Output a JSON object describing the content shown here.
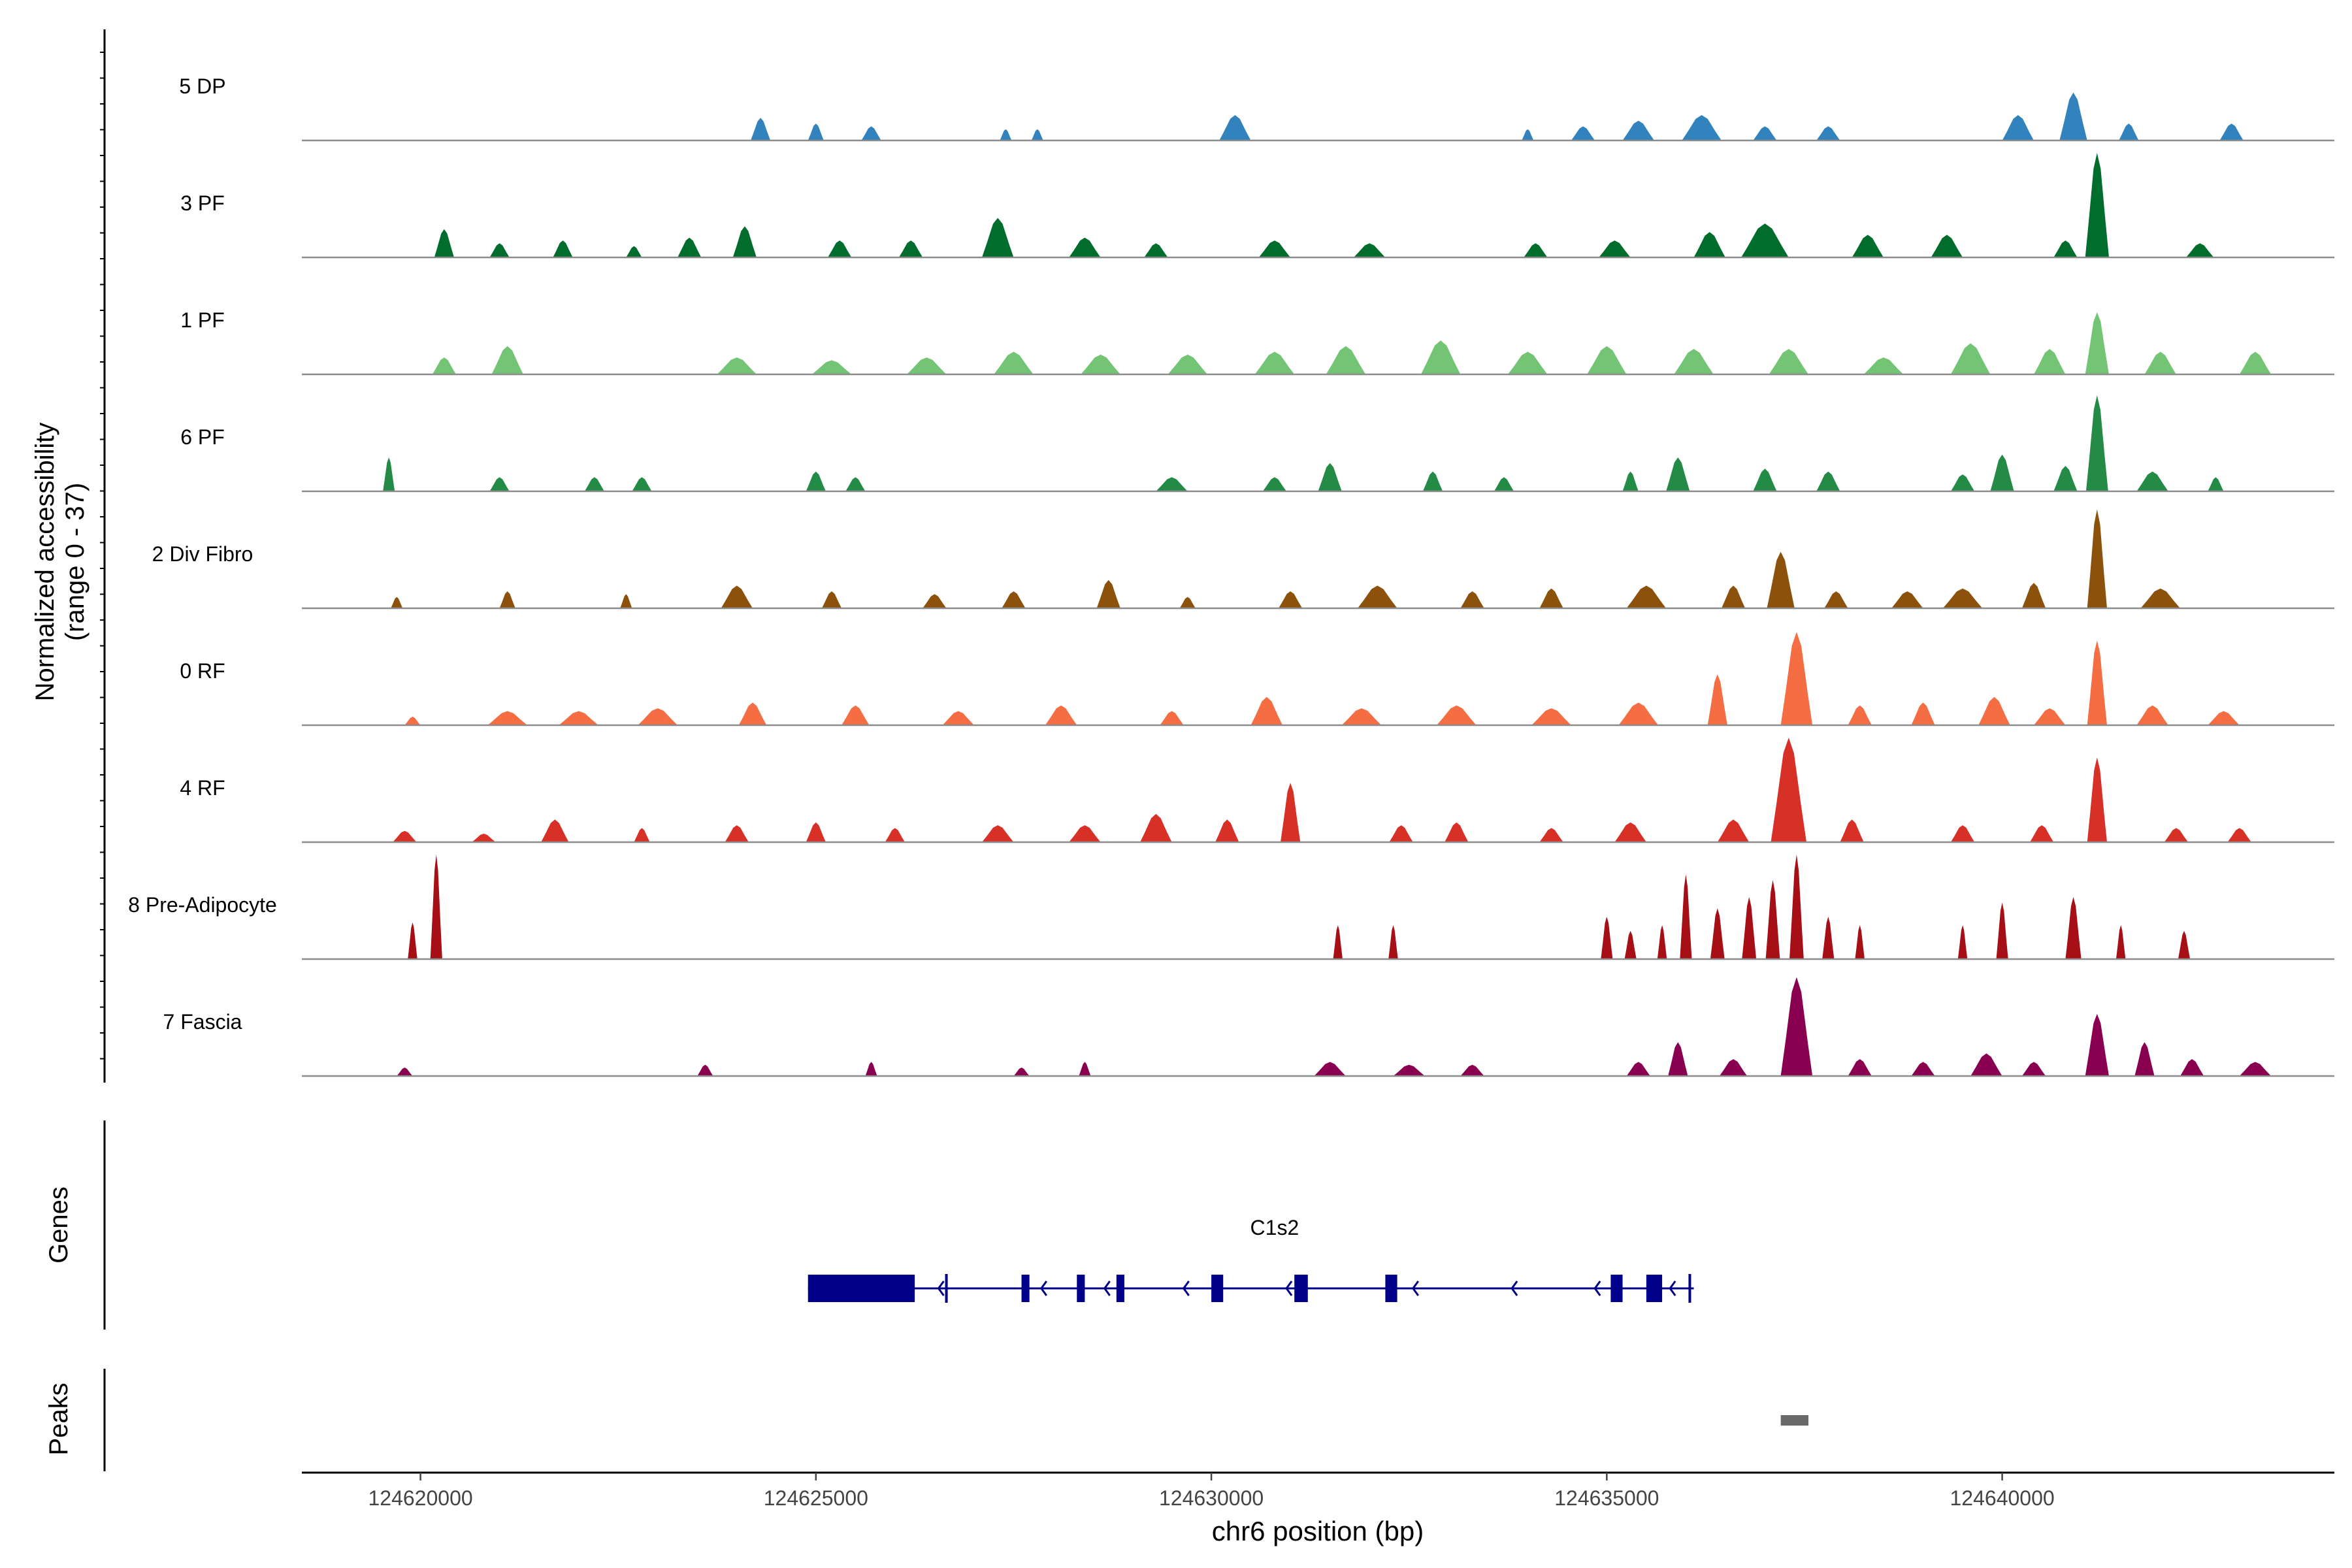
{
  "chart_data": {
    "type": "area",
    "title": "",
    "ylabel_line1": "Normalized accessibility",
    "ylabel_line2": "(range 0 - 37)",
    "xlabel": "chr6 position (bp)",
    "xlim": [
      124618500,
      124644200
    ],
    "ylim": [
      0,
      37
    ],
    "xticks": [
      124620000,
      124625000,
      124630000,
      124635000,
      124640000
    ],
    "xtick_labels": [
      "124620000",
      "124625000",
      "124630000",
      "124635000",
      "124640000"
    ],
    "tracks": [
      {
        "name": "5 DP",
        "color": "#3182bd",
        "peaks": [
          [
            124624300,
            8,
            250
          ],
          [
            124625000,
            6,
            200
          ],
          [
            124625700,
            5,
            250
          ],
          [
            124627400,
            4,
            150
          ],
          [
            124627800,
            4,
            150
          ],
          [
            124630300,
            9,
            400
          ],
          [
            124634000,
            4,
            150
          ],
          [
            124634700,
            5,
            300
          ],
          [
            124635400,
            7,
            400
          ],
          [
            124636200,
            9,
            500
          ],
          [
            124637000,
            5,
            300
          ],
          [
            124637800,
            5,
            300
          ],
          [
            124640200,
            9,
            400
          ],
          [
            124640900,
            17,
            350
          ],
          [
            124641600,
            6,
            250
          ],
          [
            124642900,
            6,
            300
          ]
        ]
      },
      {
        "name": "3 PF",
        "color": "#006d2c",
        "peaks": [
          [
            124620300,
            10,
            250
          ],
          [
            124621000,
            5,
            250
          ],
          [
            124621800,
            6,
            250
          ],
          [
            124622700,
            4,
            200
          ],
          [
            124623400,
            7,
            300
          ],
          [
            124624100,
            11,
            300
          ],
          [
            124625300,
            6,
            300
          ],
          [
            124626200,
            6,
            300
          ],
          [
            124627300,
            14,
            400
          ],
          [
            124628400,
            7,
            400
          ],
          [
            124629300,
            5,
            300
          ],
          [
            124630800,
            6,
            400
          ],
          [
            124632000,
            5,
            400
          ],
          [
            124634100,
            5,
            300
          ],
          [
            124635100,
            6,
            400
          ],
          [
            124636300,
            9,
            400
          ],
          [
            124637000,
            12,
            600
          ],
          [
            124638300,
            8,
            400
          ],
          [
            124639300,
            8,
            400
          ],
          [
            124640800,
            6,
            300
          ],
          [
            124641200,
            37,
            300
          ],
          [
            124642500,
            5,
            350
          ]
        ]
      },
      {
        "name": "1 PF",
        "color": "#74c476",
        "peaks": [
          [
            124620300,
            6,
            300
          ],
          [
            124621100,
            10,
            400
          ],
          [
            124624000,
            6,
            500
          ],
          [
            124625200,
            5,
            500
          ],
          [
            124626400,
            6,
            500
          ],
          [
            124627500,
            8,
            500
          ],
          [
            124628600,
            7,
            500
          ],
          [
            124629700,
            7,
            500
          ],
          [
            124630800,
            8,
            500
          ],
          [
            124631700,
            10,
            500
          ],
          [
            124632900,
            12,
            500
          ],
          [
            124634000,
            8,
            500
          ],
          [
            124635000,
            10,
            500
          ],
          [
            124636100,
            9,
            500
          ],
          [
            124637300,
            9,
            500
          ],
          [
            124638500,
            6,
            500
          ],
          [
            124639600,
            11,
            500
          ],
          [
            124640600,
            9,
            400
          ],
          [
            124641200,
            22,
            300
          ],
          [
            124642000,
            8,
            400
          ],
          [
            124643200,
            8,
            400
          ]
        ]
      },
      {
        "name": "6 PF",
        "color": "#238b45",
        "peaks": [
          [
            124619600,
            12,
            150
          ],
          [
            124621000,
            5,
            250
          ],
          [
            124622200,
            5,
            250
          ],
          [
            124622800,
            5,
            250
          ],
          [
            124625000,
            7,
            250
          ],
          [
            124625500,
            5,
            250
          ],
          [
            124629500,
            5,
            400
          ],
          [
            124630800,
            5,
            300
          ],
          [
            124631500,
            10,
            300
          ],
          [
            124632800,
            7,
            250
          ],
          [
            124633700,
            5,
            250
          ],
          [
            124635300,
            7,
            200
          ],
          [
            124635900,
            12,
            300
          ],
          [
            124637000,
            8,
            300
          ],
          [
            124637800,
            7,
            300
          ],
          [
            124639500,
            6,
            300
          ],
          [
            124640000,
            13,
            300
          ],
          [
            124640800,
            9,
            300
          ],
          [
            124641200,
            34,
            280
          ],
          [
            124641900,
            7,
            400
          ],
          [
            124642700,
            5,
            200
          ]
        ]
      },
      {
        "name": "2 Div Fibro",
        "color": "#8c510a",
        "peaks": [
          [
            124619700,
            4,
            150
          ],
          [
            124621100,
            6,
            200
          ],
          [
            124622600,
            5,
            150
          ],
          [
            124624000,
            8,
            400
          ],
          [
            124625200,
            6,
            250
          ],
          [
            124626500,
            5,
            300
          ],
          [
            124627500,
            6,
            300
          ],
          [
            124628700,
            10,
            300
          ],
          [
            124629700,
            4,
            200
          ],
          [
            124631000,
            6,
            300
          ],
          [
            124632100,
            8,
            500
          ],
          [
            124633300,
            6,
            300
          ],
          [
            124634300,
            7,
            300
          ],
          [
            124635500,
            8,
            500
          ],
          [
            124636600,
            8,
            300
          ],
          [
            124637200,
            20,
            350
          ],
          [
            124637900,
            6,
            300
          ],
          [
            124638800,
            6,
            400
          ],
          [
            124639500,
            7,
            500
          ],
          [
            124640400,
            9,
            300
          ],
          [
            124641200,
            35,
            250
          ],
          [
            124642000,
            7,
            500
          ]
        ]
      },
      {
        "name": "0 RF",
        "color": "#f46d43",
        "peaks": [
          [
            124619900,
            3,
            200
          ],
          [
            124621100,
            5,
            500
          ],
          [
            124622000,
            5,
            500
          ],
          [
            124623000,
            6,
            500
          ],
          [
            124624200,
            8,
            350
          ],
          [
            124625500,
            7,
            350
          ],
          [
            124626800,
            5,
            400
          ],
          [
            124628100,
            7,
            400
          ],
          [
            124629500,
            5,
            300
          ],
          [
            124630700,
            10,
            400
          ],
          [
            124631900,
            6,
            500
          ],
          [
            124633100,
            7,
            500
          ],
          [
            124634300,
            6,
            500
          ],
          [
            124635400,
            8,
            500
          ],
          [
            124636400,
            18,
            250
          ],
          [
            124637400,
            33,
            400
          ],
          [
            124638200,
            7,
            300
          ],
          [
            124639000,
            8,
            300
          ],
          [
            124639900,
            10,
            400
          ],
          [
            124640600,
            6,
            400
          ],
          [
            124641200,
            30,
            250
          ],
          [
            124641900,
            7,
            400
          ],
          [
            124642800,
            5,
            400
          ]
        ]
      },
      {
        "name": "4 RF",
        "color": "#d73027",
        "peaks": [
          [
            124619800,
            4,
            300
          ],
          [
            124620800,
            3,
            300
          ],
          [
            124621700,
            8,
            350
          ],
          [
            124622800,
            5,
            200
          ],
          [
            124624000,
            6,
            300
          ],
          [
            124625000,
            7,
            250
          ],
          [
            124626000,
            5,
            250
          ],
          [
            124627300,
            6,
            400
          ],
          [
            124628400,
            6,
            400
          ],
          [
            124629300,
            10,
            400
          ],
          [
            124630200,
            8,
            300
          ],
          [
            124631000,
            21,
            250
          ],
          [
            124632400,
            6,
            300
          ],
          [
            124633100,
            7,
            300
          ],
          [
            124634300,
            5,
            300
          ],
          [
            124635300,
            7,
            400
          ],
          [
            124636600,
            8,
            400
          ],
          [
            124637300,
            37,
            450
          ],
          [
            124638100,
            8,
            300
          ],
          [
            124639500,
            6,
            300
          ],
          [
            124640500,
            6,
            300
          ],
          [
            124641200,
            30,
            250
          ],
          [
            124642200,
            5,
            300
          ],
          [
            124643000,
            5,
            300
          ]
        ]
      },
      {
        "name": "8 Pre-Adipocyte",
        "color": "#a50f15",
        "peaks": [
          [
            124619900,
            13,
            120
          ],
          [
            124620200,
            37,
            150
          ],
          [
            124631600,
            12,
            120
          ],
          [
            124632300,
            12,
            120
          ],
          [
            124635000,
            15,
            150
          ],
          [
            124635300,
            10,
            150
          ],
          [
            124635700,
            12,
            120
          ],
          [
            124636000,
            30,
            150
          ],
          [
            124636400,
            18,
            180
          ],
          [
            124636800,
            22,
            180
          ],
          [
            124637100,
            28,
            180
          ],
          [
            124637400,
            37,
            180
          ],
          [
            124637800,
            15,
            150
          ],
          [
            124638200,
            12,
            120
          ],
          [
            124639500,
            12,
            120
          ],
          [
            124640000,
            20,
            150
          ],
          [
            124640900,
            22,
            200
          ],
          [
            124641500,
            12,
            120
          ],
          [
            124642300,
            10,
            150
          ]
        ]
      },
      {
        "name": "7 Fascia",
        "color": "#8a0051",
        "peaks": [
          [
            124619800,
            3,
            200
          ],
          [
            124623600,
            4,
            200
          ],
          [
            124625700,
            5,
            150
          ],
          [
            124627600,
            3,
            200
          ],
          [
            124628400,
            5,
            150
          ],
          [
            124631500,
            5,
            400
          ],
          [
            124632500,
            4,
            400
          ],
          [
            124633300,
            4,
            300
          ],
          [
            124635400,
            5,
            300
          ],
          [
            124635900,
            12,
            250
          ],
          [
            124636600,
            6,
            350
          ],
          [
            124637400,
            35,
            400
          ],
          [
            124638200,
            6,
            300
          ],
          [
            124639000,
            5,
            300
          ],
          [
            124639800,
            8,
            400
          ],
          [
            124640400,
            5,
            300
          ],
          [
            124641200,
            22,
            300
          ],
          [
            124641800,
            12,
            250
          ],
          [
            124642400,
            6,
            300
          ],
          [
            124643200,
            5,
            400
          ]
        ]
      }
    ],
    "genes_label": "Genes",
    "gene": {
      "name": "C1s2",
      "color": "#00008b",
      "strand": "-",
      "start": 124624900,
      "end": 124636100,
      "exons": [
        [
          124624900,
          124626250
        ],
        [
          124627600,
          124627700
        ],
        [
          124628300,
          124628400
        ],
        [
          124628800,
          124628900
        ],
        [
          124630000,
          124630150
        ],
        [
          124631050,
          124631220
        ],
        [
          124632200,
          124632350
        ],
        [
          124635050,
          124635200
        ],
        [
          124635500,
          124635700
        ]
      ],
      "edge_ticks": [
        124626650,
        124636050
      ],
      "arrows": [
        124626550,
        124627850,
        124628650,
        124629650,
        124630950,
        124632550,
        124633800,
        124634850,
        124635800
      ]
    },
    "peaks_label": "Peaks",
    "called_peaks": [
      [
        124637200,
        124637550
      ]
    ],
    "called_peak_color": "#696969"
  }
}
